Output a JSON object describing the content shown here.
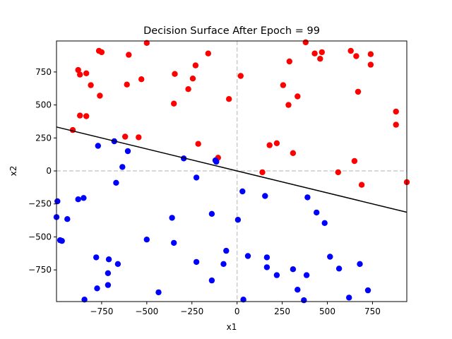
{
  "chart_data": {
    "type": "scatter",
    "title": "Decision Surface After Epoch = 99",
    "xlabel": "x1",
    "ylabel": "x2",
    "xlim": [
      -1000,
      940
    ],
    "ylim": [
      -990,
      985
    ],
    "xticks": [
      -750,
      -500,
      -250,
      0,
      250,
      500,
      750
    ],
    "yticks": [
      -750,
      -500,
      -250,
      0,
      250,
      500,
      750
    ],
    "grid": false,
    "legend": "none",
    "reference_lines": {
      "x": 0,
      "y": 0,
      "style": "dashed",
      "color": "#cccccc"
    },
    "decision_boundary": {
      "x": [
        -1000,
        940
      ],
      "y": [
        333,
        -313
      ],
      "color": "#000000"
    },
    "series": [
      {
        "color": "#ff0000",
        "points": [
          [
            -765,
            910
          ],
          [
            -750,
            900
          ],
          [
            -600,
            880
          ],
          [
            -500,
            970
          ],
          [
            -160,
            890
          ],
          [
            380,
            975
          ],
          [
            430,
            890
          ],
          [
            470,
            900
          ],
          [
            460,
            850
          ],
          [
            290,
            830
          ],
          [
            630,
            910
          ],
          [
            660,
            870
          ],
          [
            740,
            885
          ],
          [
            740,
            805
          ],
          [
            -880,
            765
          ],
          [
            -870,
            730
          ],
          [
            -835,
            740
          ],
          [
            -345,
            735
          ],
          [
            -230,
            800
          ],
          [
            -245,
            700
          ],
          [
            -530,
            695
          ],
          [
            -610,
            655
          ],
          [
            -810,
            650
          ],
          [
            -760,
            570
          ],
          [
            20,
            720
          ],
          [
            255,
            650
          ],
          [
            335,
            565
          ],
          [
            670,
            600
          ],
          [
            -270,
            620
          ],
          [
            -350,
            510
          ],
          [
            -45,
            545
          ],
          [
            285,
            500
          ],
          [
            -870,
            420
          ],
          [
            -835,
            415
          ],
          [
            -910,
            310
          ],
          [
            880,
            450
          ],
          [
            880,
            350
          ],
          [
            -620,
            260
          ],
          [
            -545,
            255
          ],
          [
            -215,
            205
          ],
          [
            180,
            195
          ],
          [
            220,
            210
          ],
          [
            310,
            135
          ],
          [
            -105,
            100
          ],
          [
            140,
            -10
          ],
          [
            560,
            -10
          ],
          [
            650,
            75
          ],
          [
            690,
            -105
          ],
          [
            940,
            -85
          ]
        ]
      },
      {
        "color": "#0000ff",
        "points": [
          [
            -770,
            190
          ],
          [
            -680,
            225
          ],
          [
            -605,
            150
          ],
          [
            -635,
            30
          ],
          [
            -670,
            -90
          ],
          [
            -295,
            95
          ],
          [
            -120,
            80
          ],
          [
            -115,
            70
          ],
          [
            -225,
            -50
          ],
          [
            -995,
            -230
          ],
          [
            -1000,
            -350
          ],
          [
            -850,
            -205
          ],
          [
            -880,
            -215
          ],
          [
            -940,
            -365
          ],
          [
            -980,
            -525
          ],
          [
            -970,
            -530
          ],
          [
            -140,
            -325
          ],
          [
            -360,
            -355
          ],
          [
            30,
            -155
          ],
          [
            155,
            -190
          ],
          [
            390,
            -200
          ],
          [
            440,
            -315
          ],
          [
            485,
            -395
          ],
          [
            5,
            -370
          ],
          [
            -500,
            -520
          ],
          [
            -350,
            -545
          ],
          [
            -60,
            -605
          ],
          [
            -780,
            -655
          ],
          [
            -710,
            -670
          ],
          [
            -660,
            -705
          ],
          [
            -225,
            -690
          ],
          [
            -75,
            -705
          ],
          [
            60,
            -645
          ],
          [
            165,
            -655
          ],
          [
            165,
            -730
          ],
          [
            310,
            -745
          ],
          [
            515,
            -650
          ],
          [
            565,
            -740
          ],
          [
            680,
            -705
          ],
          [
            -715,
            -775
          ],
          [
            -715,
            -865
          ],
          [
            -775,
            -890
          ],
          [
            -435,
            -920
          ],
          [
            -140,
            -830
          ],
          [
            220,
            -790
          ],
          [
            385,
            -790
          ],
          [
            335,
            -900
          ],
          [
            725,
            -905
          ],
          [
            -845,
            -975
          ],
          [
            35,
            -975
          ],
          [
            370,
            -980
          ],
          [
            620,
            -960
          ]
        ]
      }
    ]
  }
}
